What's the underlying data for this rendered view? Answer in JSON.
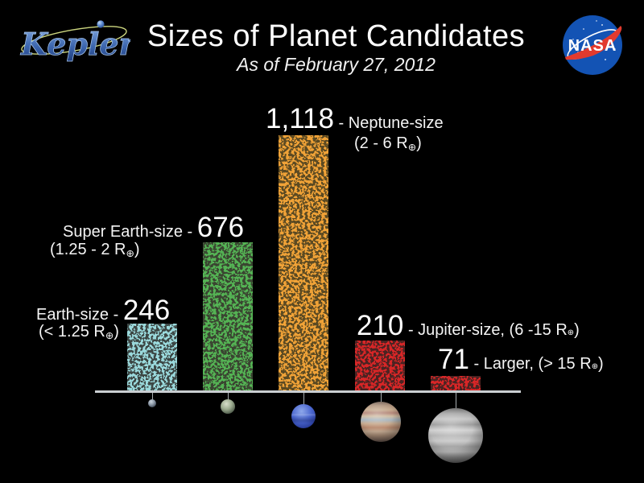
{
  "page": {
    "background": "#000000",
    "baseline_color": "#c9ced1"
  },
  "header": {
    "kepler_logo_label": "Kepler",
    "title": "Sizes of Planet Candidates",
    "subtitle": "As of February 27, 2012",
    "nasa_logo_label": "NASA"
  },
  "chart_data": {
    "type": "bar",
    "title": "Sizes of Planet Candidates",
    "subtitle": "As of February 27, 2012",
    "grid": false,
    "legend": false,
    "categories": [
      "Earth-size",
      "Super Earth-size",
      "Neptune-size",
      "Jupiter-size",
      "Larger"
    ],
    "values": [
      246,
      676,
      1118,
      210,
      71
    ],
    "bars": [
      {
        "category": "Earth-size",
        "value": 246,
        "value_text": "246",
        "label_prefix": "Earth-size - ",
        "label_suffix": "",
        "size_range": "(< 1.25 R⊕)",
        "bar_color": "#9ad9dc",
        "bar_bg_color": "#3c4644",
        "planet_icon": "earth-planet-icon"
      },
      {
        "category": "Super Earth-size",
        "value": 676,
        "value_text": "676",
        "label_prefix": "Super Earth-size - ",
        "label_suffix": "",
        "size_range": "(1.25 - 2 R⊕)",
        "bar_color": "#54b354",
        "bar_bg_color": "#3a4531",
        "planet_icon": "super-earth-planet-icon"
      },
      {
        "category": "Neptune-size",
        "value": 1118,
        "value_text": "1,118",
        "label_prefix": "",
        "label_suffix": " - Neptune-size",
        "size_range": "(2 - 6 R⊕)",
        "bar_color": "#f0a237",
        "bar_bg_color": "#5c4a22",
        "planet_icon": "neptune-planet-icon"
      },
      {
        "category": "Jupiter-size",
        "value": 210,
        "value_text": "210",
        "label_prefix": "",
        "label_suffix": " - Jupiter-size, (6 -15 R⊕)",
        "size_range": null,
        "bar_color": "#d82627",
        "bar_bg_color": "#4a2322",
        "planet_icon": "jupiter-planet-icon"
      },
      {
        "category": "Larger",
        "value": 71,
        "value_text": "71",
        "label_prefix": "",
        "label_suffix": " - Larger, (> 15 R⊕)",
        "size_range": null,
        "bar_color": "#d82627",
        "bar_bg_color": "#4a2322",
        "planet_icon": "larger-planet-icon"
      }
    ]
  }
}
